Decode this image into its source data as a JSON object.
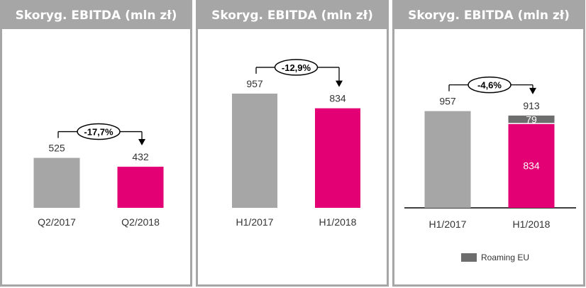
{
  "colors": {
    "gray": "#a6a6a6",
    "magenta": "#e20074",
    "dark_gray": "#6d6d6d"
  },
  "chart_data": [
    {
      "type": "bar",
      "title": "Skoryg. EBITDA (mln zł)",
      "categories": [
        "Q2/2017",
        "Q2/2018"
      ],
      "values": [
        525,
        432
      ],
      "value_labels": [
        "525",
        "432"
      ],
      "change_label": "-17,7%",
      "ylim": [
        0,
        1000
      ],
      "grid": false
    },
    {
      "type": "bar",
      "title": "Skoryg. EBITDA (mln zł)",
      "categories": [
        "H1/2017",
        "H1/2018"
      ],
      "values": [
        957,
        834
      ],
      "value_labels": [
        "957",
        "834"
      ],
      "change_label": "-12,9%",
      "ylim": [
        0,
        1000
      ],
      "grid": false
    },
    {
      "type": "bar",
      "stacked": true,
      "title": "Skoryg. EBITDA (mln zł)",
      "categories": [
        "H1/2017",
        "H1/2018"
      ],
      "total_labels": [
        "957",
        "913"
      ],
      "change_label": "-4,6%",
      "series": [
        {
          "values": [
            957,
            834
          ],
          "segment_labels": [
            "",
            "834"
          ]
        },
        {
          "name": "Roaming EU",
          "values": [
            0,
            79
          ],
          "segment_labels": [
            "",
            "79"
          ]
        }
      ],
      "legend": {
        "position": "bottom-right",
        "entries": [
          "Roaming EU"
        ]
      },
      "ylim": [
        0,
        1000
      ],
      "grid": false
    }
  ]
}
